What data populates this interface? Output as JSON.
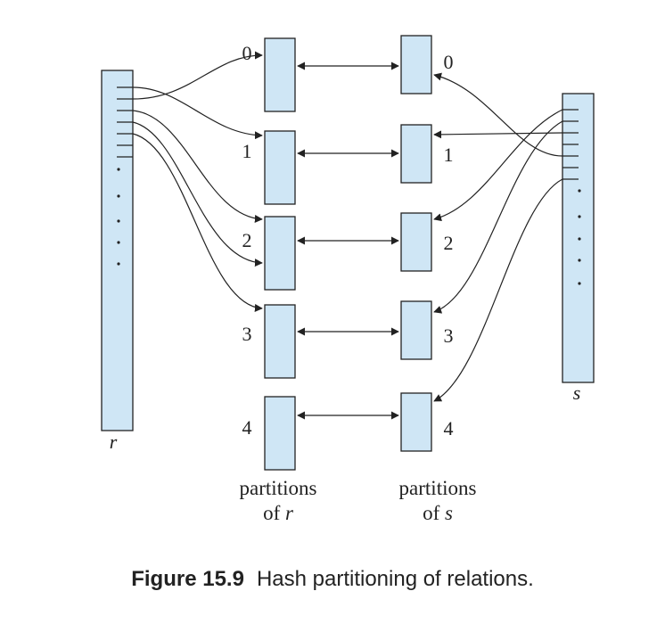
{
  "relation_r": {
    "label": "r"
  },
  "relation_s": {
    "label": "s"
  },
  "partitions_r": {
    "indices": [
      "0",
      "1",
      "2",
      "3",
      "4"
    ],
    "caption_line1": "partitions",
    "caption_line2_prefix": "of ",
    "caption_line2_var": "r"
  },
  "partitions_s": {
    "indices": [
      "0",
      "1",
      "2",
      "3",
      "4"
    ],
    "caption_line1": "partitions",
    "caption_line2_prefix": "of ",
    "caption_line2_var": "s"
  },
  "figure": {
    "number": "Figure 15.9",
    "title": "Hash partitioning of relations."
  },
  "colors": {
    "box_fill": "#cfe6f5",
    "stroke": "#222222"
  }
}
